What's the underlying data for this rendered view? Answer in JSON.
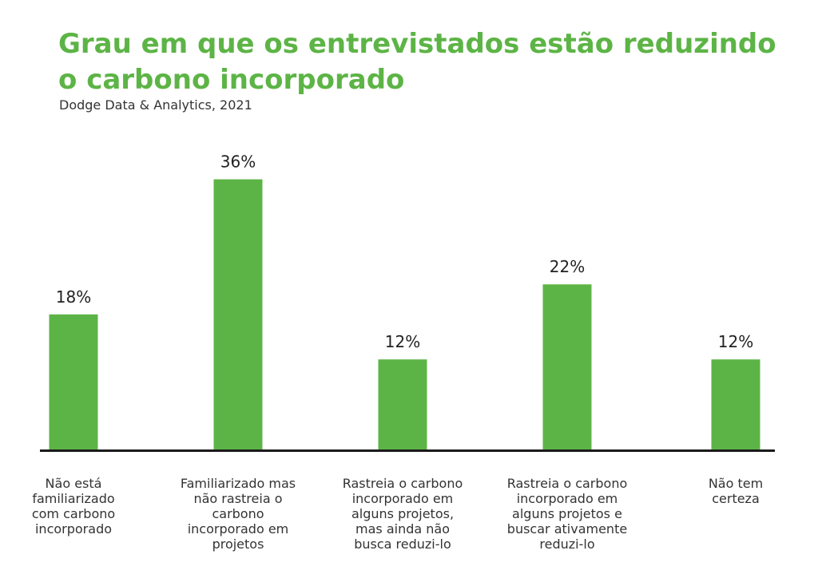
{
  "chart_data": {
    "type": "bar",
    "title": "Grau em que os entrevistados estão reduzindo o carbono incorporado",
    "subtitle": "Dodge Data & Analytics, 2021",
    "categories": [
      "Não está\nfamiliarizado\ncom carbono\nincorporado",
      "Familiarizado mas\nnão rastreia o\ncarbono\nincorporado em\nprojetos",
      "Rastreia o carbono\nincorporado em\nalguns projetos,\nmas ainda não\nbusca reduzi-lo",
      "Rastreia o carbono\nincorporado em\nalguns projetos e\nbuscar ativamente\nreduzi-lo",
      "Não tem\ncerteza"
    ],
    "values": [
      18,
      36,
      12,
      22,
      12
    ],
    "value_labels": [
      "18%",
      "36%",
      "12%",
      "22%",
      "12%"
    ],
    "unit": "%",
    "bar_color": "#5db446",
    "title_color": "#5db446",
    "axis_color": "#1a1a1a",
    "grid": false,
    "legend": "none"
  }
}
